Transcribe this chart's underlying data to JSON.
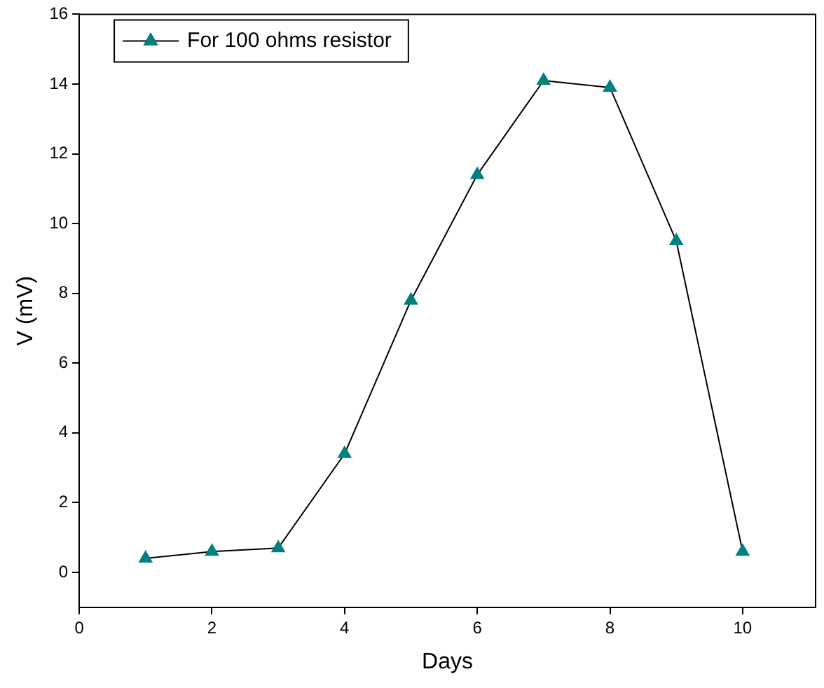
{
  "chart_data": {
    "type": "line",
    "xlabel": "Days",
    "ylabel": "V (mV)",
    "x": [
      1,
      2,
      3,
      4,
      5,
      6,
      7,
      8,
      9,
      10
    ],
    "series": [
      {
        "name": "For 100 ohms resistor",
        "color": "#008080",
        "values": [
          0.4,
          0.6,
          0.7,
          3.4,
          7.8,
          11.4,
          14.1,
          13.9,
          9.5,
          0.6
        ]
      }
    ],
    "xlim": [
      0,
      11.1
    ],
    "xticks": [
      0,
      2,
      4,
      6,
      8,
      10
    ],
    "ylim": [
      -1,
      16
    ],
    "yticks": [
      0,
      2,
      4,
      6,
      8,
      10,
      12,
      14,
      16
    ],
    "marker": "triangle",
    "line_style": "solid",
    "grid": false,
    "legend": "top left"
  }
}
